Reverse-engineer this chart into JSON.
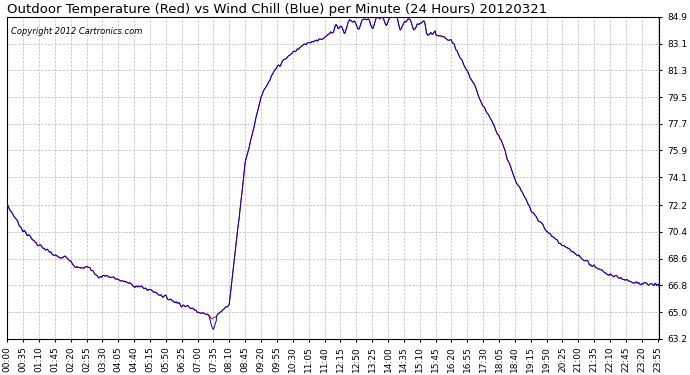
{
  "title": "Outdoor Temperature (Red) vs Wind Chill (Blue) per Minute (24 Hours) 20120321",
  "copyright": "Copyright 2012 Cartronics.com",
  "yticks": [
    84.9,
    83.1,
    81.3,
    79.5,
    77.7,
    75.9,
    74.1,
    72.2,
    70.4,
    68.6,
    66.8,
    65.0,
    63.2
  ],
  "ylim": [
    63.2,
    84.9
  ],
  "xtick_labels": [
    "00:00",
    "00:35",
    "01:10",
    "01:45",
    "02:20",
    "02:55",
    "03:30",
    "04:05",
    "04:40",
    "05:15",
    "05:50",
    "06:25",
    "07:00",
    "07:35",
    "08:10",
    "08:45",
    "09:20",
    "09:55",
    "10:30",
    "11:05",
    "11:40",
    "12:15",
    "12:50",
    "13:25",
    "14:00",
    "14:35",
    "15:10",
    "15:45",
    "16:20",
    "16:55",
    "17:30",
    "18:05",
    "18:40",
    "19:15",
    "19:50",
    "20:25",
    "21:00",
    "21:35",
    "22:10",
    "22:45",
    "23:20",
    "23:55"
  ],
  "bg_color": "#ffffff",
  "plot_bg_color": "#ffffff",
  "grid_color": "#bbbbbb",
  "line_color_red": "#dd0000",
  "line_color_blue": "#0000cc",
  "title_fontsize": 9.5,
  "tick_fontsize": 6.5,
  "copyright_fontsize": 6
}
